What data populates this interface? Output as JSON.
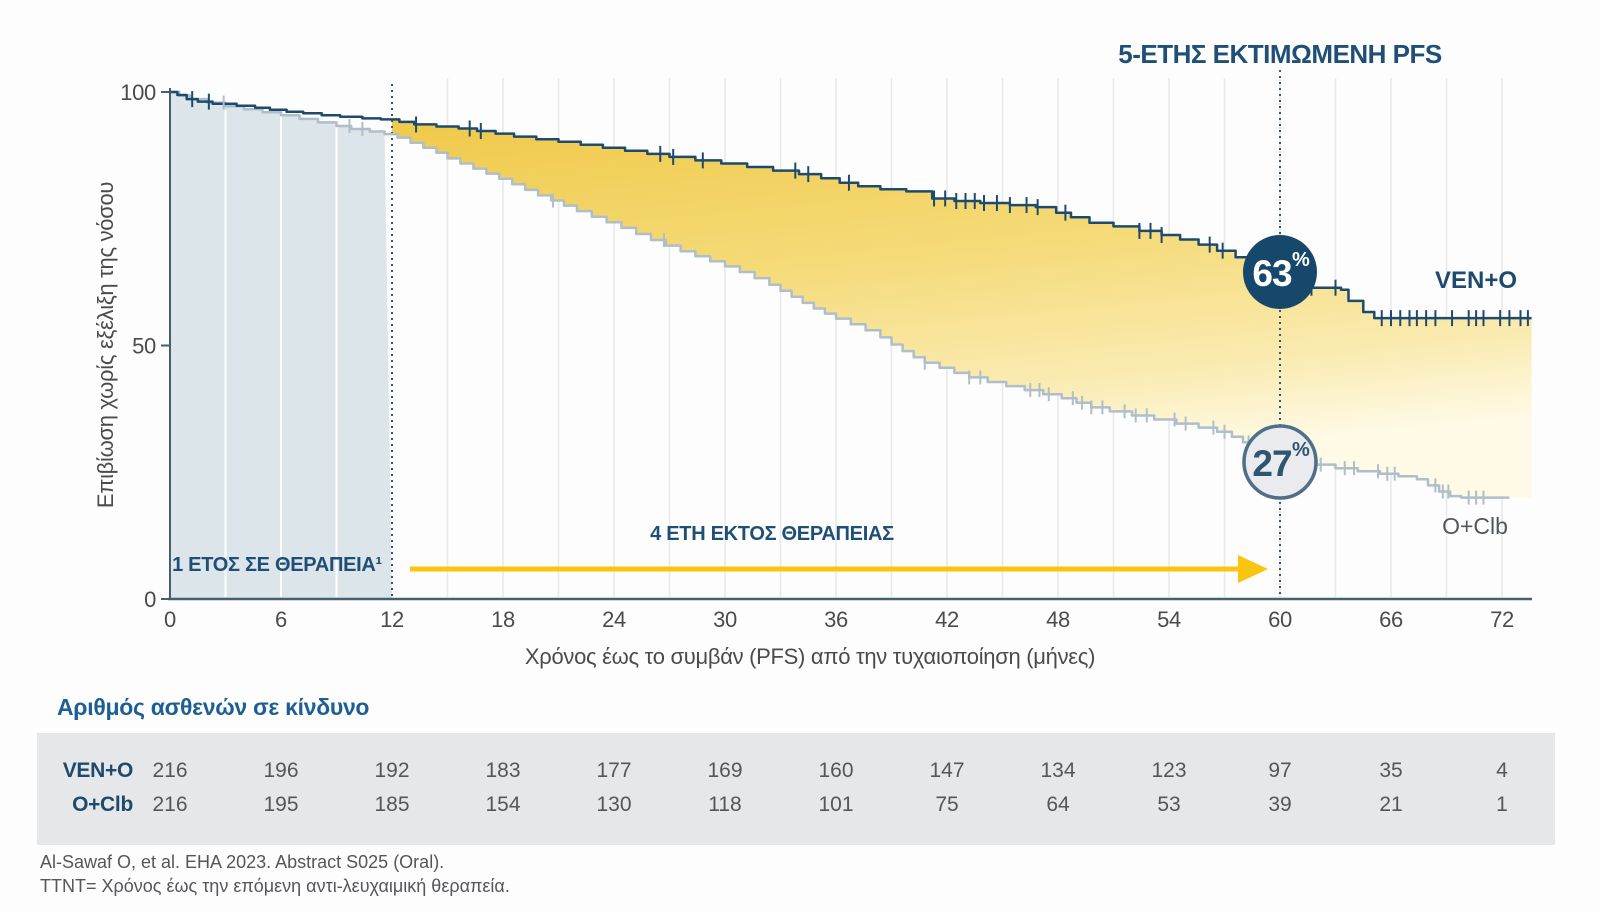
{
  "title": "5-ΕΤΗΣ ΕΚΤΙΜΩΜΕΝΗ PFS",
  "colors": {
    "ven_curve": "#1E4B6D",
    "oclb_curve": "#AFBECB",
    "badge_ven_fill": "#16486C",
    "badge_oclb_fill": "#E9EBEE",
    "badge_oclb_stroke": "#4F6F89",
    "badge_oclb_text": "#2E5671",
    "navy_text": "#1F4F76",
    "arrow_gold": "#FBC40F",
    "fill_gold_top": "#F0C94A",
    "fill_gold_bottom": "#FEFAE6",
    "on_therapy_band": "#DCE5E9",
    "gridline": "#E9E9E9",
    "axis": "#46606E",
    "tick_text": "#4B4B4D",
    "table_strip": "#E6E7E8",
    "table_header": "#1D5F95",
    "number_text": "#55565A",
    "guide_dotted": "#3A566A"
  },
  "chart_data": {
    "type": "line",
    "subtype": "kaplan-meier-step",
    "title": "5-ΕΤΗΣ ΕΚΤΙΜΩΜΕΝΗ PFS",
    "xlabel": "Χρόνος έως το συμβάν (PFS) από την τυχαιοποίηση (μήνες)",
    "ylabel": "Επιβίωση χωρίς εξέλιξη της νόσου",
    "x_ticks": [
      0,
      6,
      12,
      18,
      24,
      30,
      36,
      42,
      48,
      54,
      60,
      66,
      72
    ],
    "y_ticks": [
      0,
      50,
      100
    ],
    "xlim": [
      0,
      73.6
    ],
    "ylim": [
      0,
      100
    ],
    "grid": "vertical-every-3-months",
    "dotted_guides_months": [
      12,
      60
    ],
    "on_therapy_label": "1 ΕΤΟΣ ΣΕ ΘΕΡΑΠΕΙΑ¹",
    "on_therapy_range": [
      0,
      12
    ],
    "off_therapy_label": "4 ΕΤΗ ΕΚΤΟΣ ΘΕΡΑΠΕΙΑΣ",
    "off_therapy_arrow_range": [
      13,
      59.4
    ],
    "series": [
      {
        "name": "VEN+O",
        "label": "VEN+O",
        "estimate_5yr_pct": 63,
        "points": [
          [
            0,
            100
          ],
          [
            0.4,
            99.4
          ],
          [
            0.9,
            98.6
          ],
          [
            1.5,
            98.1
          ],
          [
            2.3,
            97.7
          ],
          [
            3.6,
            97.3
          ],
          [
            4.6,
            96.9
          ],
          [
            5.4,
            96.5
          ],
          [
            6.3,
            96.1
          ],
          [
            7.2,
            95.8
          ],
          [
            8.2,
            95.4
          ],
          [
            9.2,
            95.1
          ],
          [
            10.4,
            94.8
          ],
          [
            11.4,
            94.6
          ],
          [
            12.4,
            94.1
          ],
          [
            13.2,
            93.6
          ],
          [
            14.4,
            93.2
          ],
          [
            15.6,
            92.8
          ],
          [
            16.6,
            92.3
          ],
          [
            17.6,
            91.8
          ],
          [
            18.6,
            91.2
          ],
          [
            19.8,
            90.7
          ],
          [
            21,
            90.2
          ],
          [
            22.2,
            89.6
          ],
          [
            23.4,
            89.0
          ],
          [
            24.6,
            88.4
          ],
          [
            25.8,
            87.8
          ],
          [
            27,
            87.2
          ],
          [
            28.4,
            86.5
          ],
          [
            29.8,
            85.9
          ],
          [
            31.2,
            85.2
          ],
          [
            32.6,
            84.5
          ],
          [
            34,
            83.8
          ],
          [
            35.2,
            83.0
          ],
          [
            36.2,
            82.1
          ],
          [
            37.2,
            81.4
          ],
          [
            38.4,
            80.8
          ],
          [
            39.8,
            80.4
          ],
          [
            41.2,
            79.0
          ],
          [
            42.4,
            78.5
          ],
          [
            43.8,
            78.1
          ],
          [
            45.4,
            77.7
          ],
          [
            46.8,
            77.3
          ],
          [
            47.9,
            76.2
          ],
          [
            48.7,
            75.3
          ],
          [
            49.7,
            74.2
          ],
          [
            51,
            73.5
          ],
          [
            52.4,
            72.6
          ],
          [
            53.6,
            71.8
          ],
          [
            54.6,
            70.9
          ],
          [
            55.6,
            69.9
          ],
          [
            56.6,
            68.7
          ],
          [
            57.6,
            67.4
          ],
          [
            58.4,
            66.1
          ],
          [
            59.2,
            64.9
          ],
          [
            59.8,
            63.8
          ],
          [
            60.4,
            62.2
          ],
          [
            61.2,
            61.4
          ],
          [
            63.3,
            61.0
          ],
          [
            63.7,
            58.8
          ],
          [
            64.5,
            56.6
          ],
          [
            65.1,
            55.4
          ],
          [
            73.6,
            55.4
          ]
        ],
        "censor_months": [
          1.2,
          2.1,
          13.3,
          16.2,
          16.8,
          26.5,
          27.2,
          28.8,
          33.8,
          34.5,
          36.7,
          41.3,
          41.9,
          42.5,
          43.0,
          43.5,
          44.0,
          44.7,
          45.4,
          46.3,
          46.9,
          48.4,
          52.4,
          53.0,
          53.6,
          56.2,
          56.9,
          61.0,
          61.7,
          63.0,
          65.5,
          66.0,
          66.5,
          67.0,
          67.4,
          67.9,
          68.4,
          69.3,
          70.2,
          70.6,
          71.0,
          71.9,
          72.4,
          73.0,
          73.4
        ]
      },
      {
        "name": "O+Clb",
        "label": "O+Clb",
        "estimate_5yr_pct": 27,
        "points": [
          [
            0,
            100
          ],
          [
            0.5,
            99.3
          ],
          [
            1.1,
            98.6
          ],
          [
            2.0,
            97.9
          ],
          [
            3.0,
            97.2
          ],
          [
            4.0,
            96.6
          ],
          [
            5.0,
            96.0
          ],
          [
            6.0,
            95.4
          ],
          [
            7.0,
            94.7
          ],
          [
            8.0,
            94.0
          ],
          [
            9.0,
            93.3
          ],
          [
            9.8,
            92.7
          ],
          [
            10.8,
            92.2
          ],
          [
            11.6,
            91.7
          ],
          [
            12.3,
            91.0
          ],
          [
            13.0,
            90.0
          ],
          [
            13.7,
            89.0
          ],
          [
            14.4,
            88.0
          ],
          [
            15.0,
            86.9
          ],
          [
            15.7,
            85.9
          ],
          [
            16.4,
            84.9
          ],
          [
            17.1,
            83.9
          ],
          [
            17.8,
            82.9
          ],
          [
            18.5,
            81.8
          ],
          [
            19.2,
            80.7
          ],
          [
            19.9,
            79.6
          ],
          [
            20.6,
            78.6
          ],
          [
            21.3,
            77.6
          ],
          [
            22.0,
            76.5
          ],
          [
            22.8,
            75.4
          ],
          [
            23.6,
            74.3
          ],
          [
            24.4,
            73.2
          ],
          [
            25.2,
            72.0
          ],
          [
            26.0,
            70.8
          ],
          [
            26.8,
            69.7
          ],
          [
            27.6,
            68.6
          ],
          [
            28.4,
            67.6
          ],
          [
            29.2,
            66.6
          ],
          [
            30.0,
            65.6
          ],
          [
            30.8,
            64.5
          ],
          [
            31.6,
            63.3
          ],
          [
            32.4,
            62.0
          ],
          [
            33.0,
            60.8
          ],
          [
            33.6,
            59.6
          ],
          [
            34.2,
            58.4
          ],
          [
            34.8,
            57.3
          ],
          [
            35.4,
            56.3
          ],
          [
            36.0,
            55.3
          ],
          [
            36.8,
            54.2
          ],
          [
            37.6,
            53.0
          ],
          [
            38.4,
            51.6
          ],
          [
            39.0,
            50.2
          ],
          [
            39.6,
            48.9
          ],
          [
            40.2,
            47.7
          ],
          [
            40.8,
            46.6
          ],
          [
            41.6,
            45.6
          ],
          [
            42.4,
            44.6
          ],
          [
            43.2,
            43.7
          ],
          [
            44.2,
            42.8
          ],
          [
            45.2,
            42.0
          ],
          [
            46.2,
            41.2
          ],
          [
            47.2,
            40.4
          ],
          [
            48.2,
            39.6
          ],
          [
            49.0,
            38.7
          ],
          [
            49.8,
            37.8
          ],
          [
            50.8,
            37.0
          ],
          [
            52.0,
            36.2
          ],
          [
            53.2,
            35.4
          ],
          [
            54.4,
            34.6
          ],
          [
            55.6,
            33.8
          ],
          [
            56.6,
            33.0
          ],
          [
            57.4,
            32.0
          ],
          [
            58.0,
            30.9
          ],
          [
            58.6,
            29.8
          ],
          [
            59.2,
            28.7
          ],
          [
            59.8,
            27.7
          ],
          [
            60.4,
            27.0
          ],
          [
            61.6,
            26.5
          ],
          [
            63.0,
            25.8
          ],
          [
            64.2,
            25.2
          ],
          [
            65.4,
            24.7
          ],
          [
            66.4,
            24.2
          ],
          [
            67.4,
            23.6
          ],
          [
            68.0,
            22.4
          ],
          [
            68.6,
            21.2
          ],
          [
            69.2,
            20.3
          ],
          [
            69.8,
            20.0
          ],
          [
            72.4,
            20.0
          ]
        ],
        "censor_months": [
          2.9,
          9.7,
          10.4,
          20.7,
          26.7,
          40.8,
          43.2,
          43.8,
          46.5,
          47.0,
          47.5,
          48.8,
          49.3,
          49.8,
          50.4,
          51.6,
          52.2,
          52.8,
          54.3,
          54.9,
          56.4,
          57.0,
          58.3,
          61.2,
          61.7,
          62.2,
          63.5,
          64.0,
          65.3,
          65.8,
          66.2,
          68.4,
          68.8,
          69.1,
          70.2,
          70.6,
          71.0
        ]
      }
    ]
  },
  "badges": {
    "ven": {
      "value": "63",
      "unit": "%"
    },
    "oclb": {
      "value": "27",
      "unit": "%"
    }
  },
  "risk_table": {
    "header": "Αριθμός ασθενών σε κίνδυνο",
    "months": [
      0,
      6,
      12,
      18,
      24,
      30,
      36,
      42,
      48,
      54,
      60,
      66,
      72
    ],
    "rows": [
      {
        "label": "VEN+O",
        "values": [
          216,
          196,
          192,
          183,
          177,
          169,
          160,
          147,
          134,
          123,
          97,
          35,
          4
        ]
      },
      {
        "label": "O+Clb",
        "values": [
          216,
          195,
          185,
          154,
          130,
          118,
          101,
          75,
          64,
          53,
          39,
          21,
          1
        ]
      }
    ]
  },
  "footer": {
    "line1": "Al-Sawaf O, et al. EHA 2023. Abstract S025 (Oral).",
    "line2": "TTNT= Χρόνος έως την επόμενη αντι-λευχαιμική θεραπεία."
  }
}
